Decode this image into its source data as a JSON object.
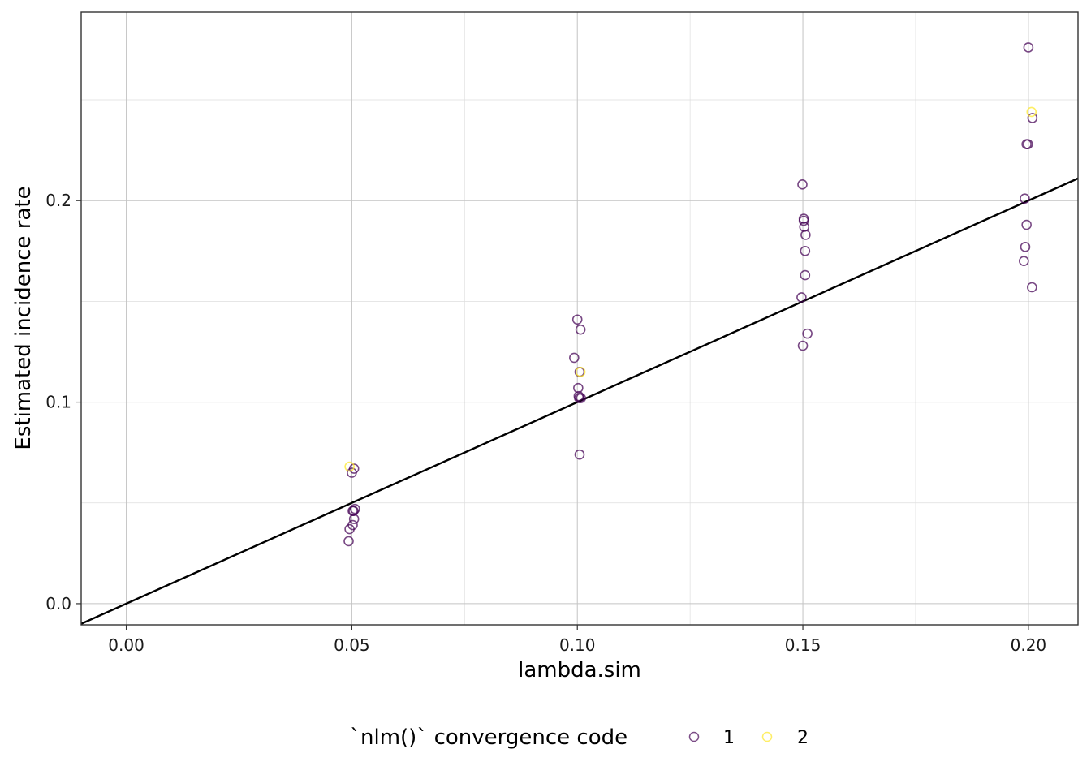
{
  "chart_data": {
    "type": "scatter",
    "title": "",
    "xlabel": "lambda.sim",
    "ylabel": "Estimated incidence rate",
    "xlim": [
      -0.01,
      0.211
    ],
    "ylim": [
      -0.0105,
      0.2935
    ],
    "x_ticks": [
      0.0,
      0.05,
      0.1,
      0.15,
      0.2
    ],
    "x_tick_labels": [
      "0.00",
      "0.05",
      "0.10",
      "0.15",
      "0.20"
    ],
    "y_ticks": [
      0.0,
      0.1,
      0.2
    ],
    "y_tick_labels": [
      "0.0",
      "0.1",
      "0.2"
    ],
    "grid": true,
    "legend": {
      "title": "`nlm()` convergence code",
      "position": "bottom",
      "entries": [
        {
          "label": "1",
          "color": "#440154"
        },
        {
          "label": "2",
          "color": "#FDE725"
        }
      ]
    },
    "reference_line": {
      "slope": 1,
      "intercept": 0,
      "color": "#000000"
    },
    "series": [
      {
        "name": "1",
        "color": "#440154",
        "points": [
          [
            0.0493,
            0.031
          ],
          [
            0.0495,
            0.037
          ],
          [
            0.0502,
            0.039
          ],
          [
            0.0505,
            0.042
          ],
          [
            0.0502,
            0.046
          ],
          [
            0.0504,
            0.046
          ],
          [
            0.0507,
            0.047
          ],
          [
            0.05,
            0.065
          ],
          [
            0.0505,
            0.067
          ],
          [
            0.1005,
            0.074
          ],
          [
            0.1004,
            0.102
          ],
          [
            0.1008,
            0.102
          ],
          [
            0.1003,
            0.103
          ],
          [
            0.1002,
            0.107
          ],
          [
            0.1005,
            0.115
          ],
          [
            0.0993,
            0.122
          ],
          [
            0.1007,
            0.136
          ],
          [
            0.1,
            0.141
          ],
          [
            0.15,
            0.128
          ],
          [
            0.151,
            0.134
          ],
          [
            0.1497,
            0.152
          ],
          [
            0.1505,
            0.163
          ],
          [
            0.1505,
            0.175
          ],
          [
            0.1506,
            0.183
          ],
          [
            0.1503,
            0.187
          ],
          [
            0.1502,
            0.19
          ],
          [
            0.1502,
            0.191
          ],
          [
            0.1499,
            0.208
          ],
          [
            0.2008,
            0.157
          ],
          [
            0.199,
            0.17
          ],
          [
            0.1993,
            0.177
          ],
          [
            0.1996,
            0.188
          ],
          [
            0.1992,
            0.201
          ],
          [
            0.1996,
            0.228
          ],
          [
            0.1999,
            0.228
          ],
          [
            0.2009,
            0.241
          ],
          [
            0.2,
            0.276
          ]
        ]
      },
      {
        "name": "2",
        "color": "#FDE725",
        "points": [
          [
            0.0495,
            0.068
          ],
          [
            0.1007,
            0.115
          ],
          [
            0.2007,
            0.244
          ]
        ]
      }
    ]
  }
}
